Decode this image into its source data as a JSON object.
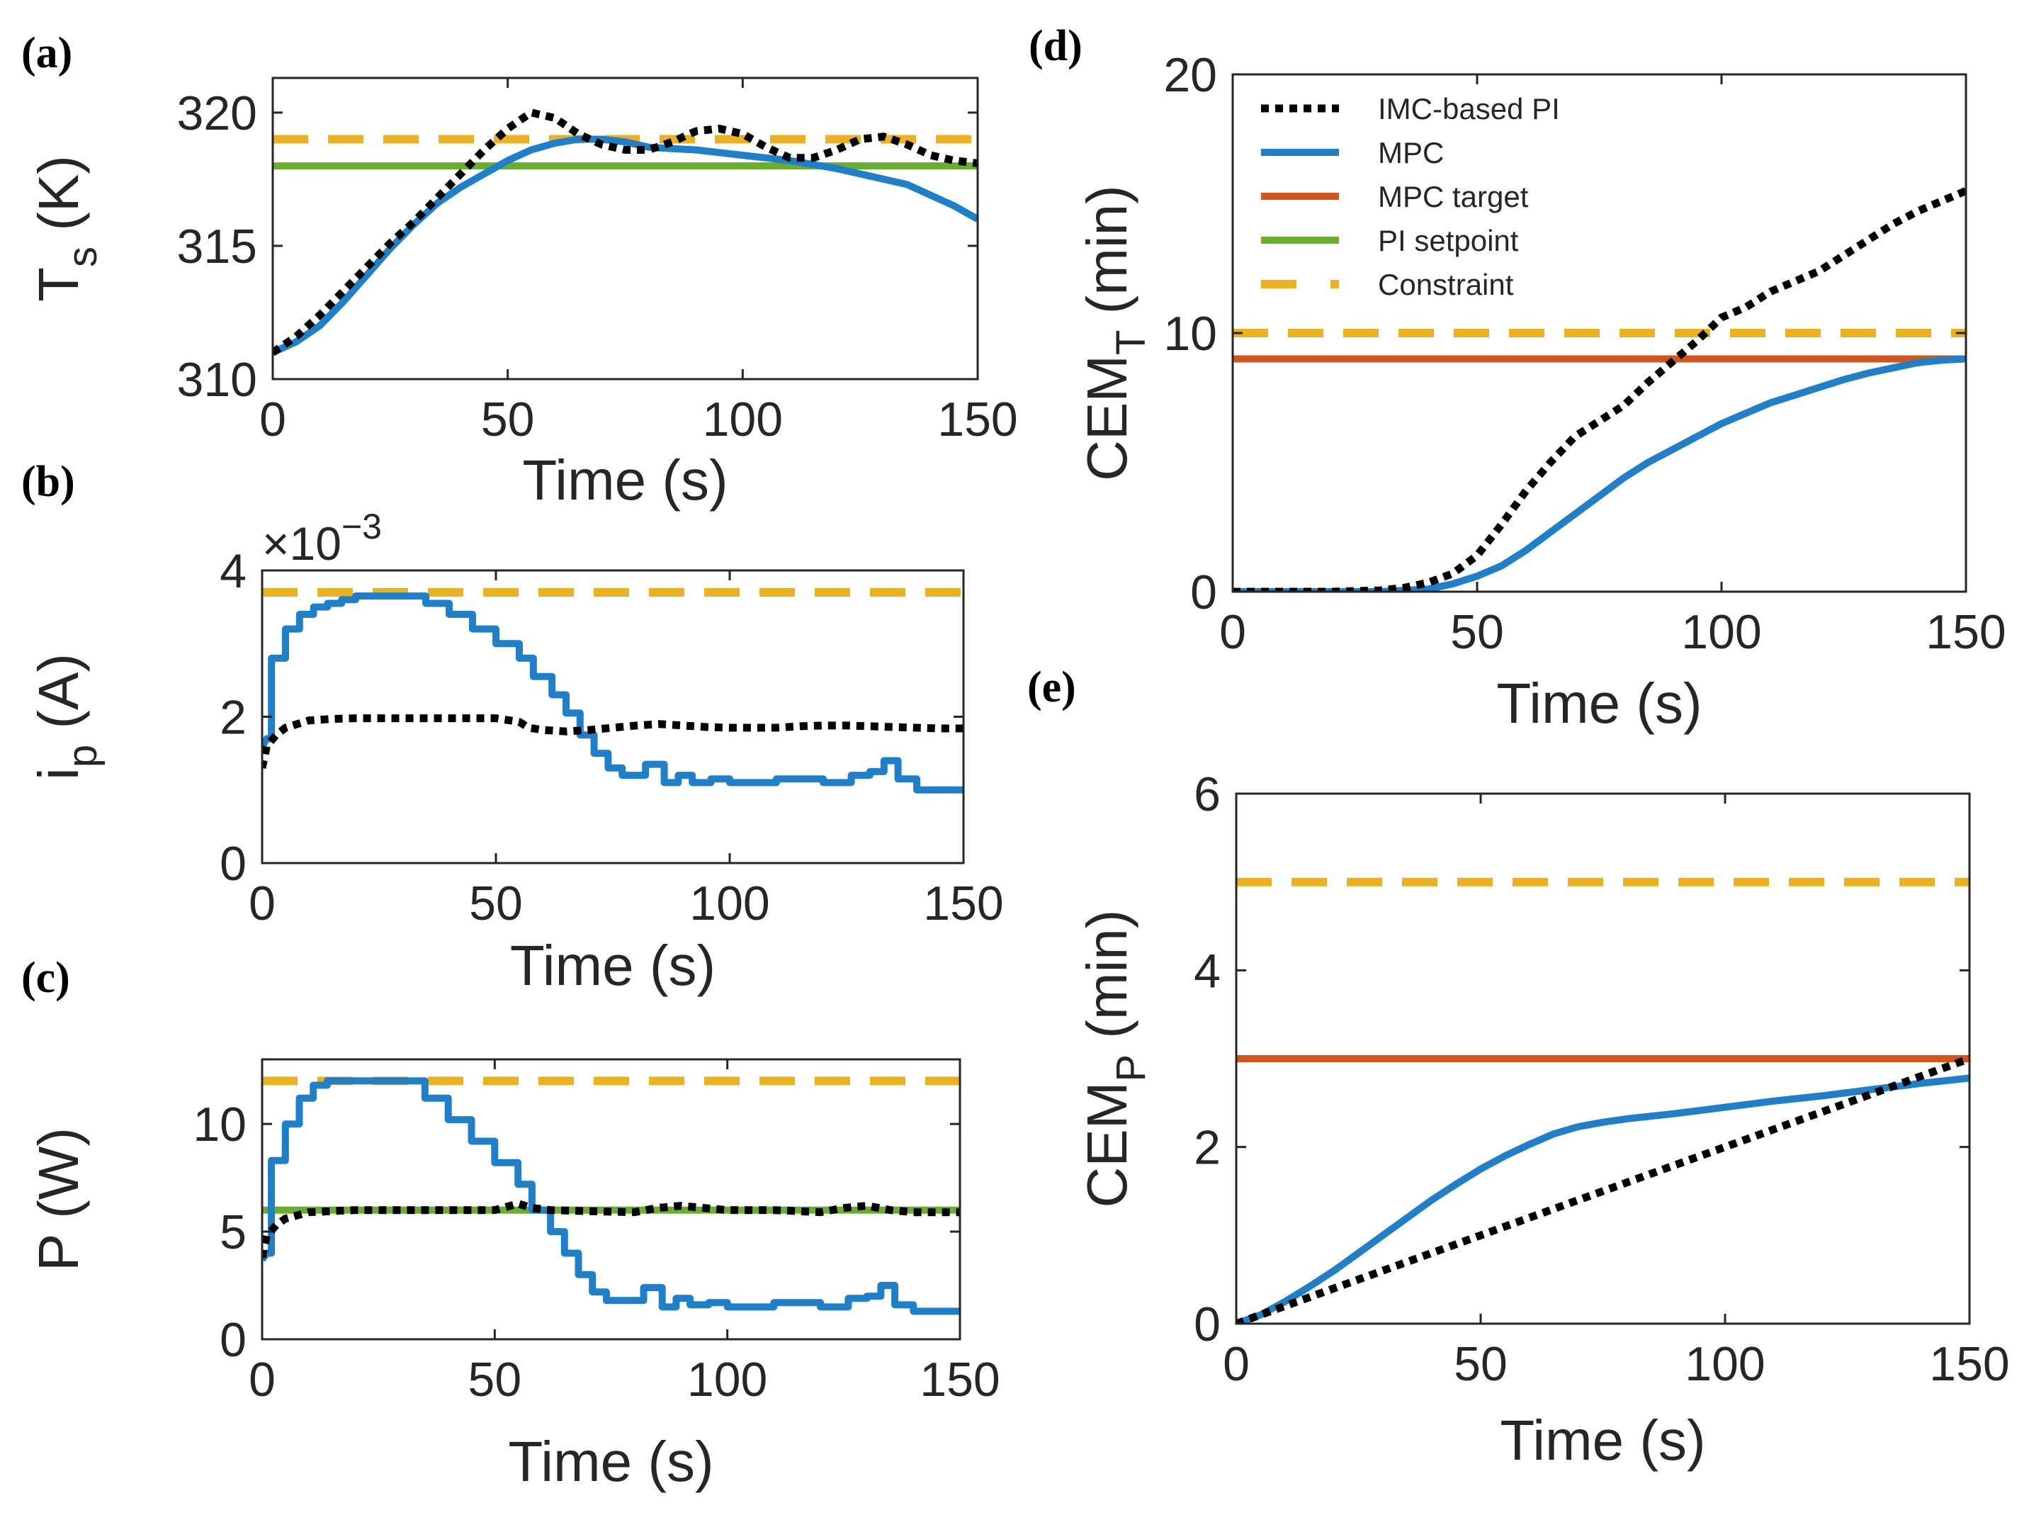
{
  "colors": {
    "imc": "#000000",
    "mpc": "#1f7fc8",
    "mpc_target": "#d4541b",
    "pi_setpoint": "#6aae2e",
    "constraint": "#edb120"
  },
  "legend": {
    "imc": "IMC-based PI",
    "mpc": "MPC",
    "mpc_target": "MPC target",
    "pi_setpoint": "PI setpoint",
    "constraint": "Constraint"
  },
  "chart_data": [
    {
      "id": "a",
      "panel_label": "(a)",
      "type": "line",
      "xlabel": "Time (s)",
      "ylabel": "T",
      "ylabel_sub": "s",
      "ylabel_suffix": " (K)",
      "xlim": [
        0,
        150
      ],
      "ylim": [
        310,
        321.3
      ],
      "xticks": [
        0,
        50,
        100,
        150
      ],
      "yticks": [
        310,
        315,
        320
      ],
      "series": [
        {
          "name": "IMC-based PI",
          "key": "imc",
          "style": "dotted",
          "x": [
            0,
            5,
            10,
            15,
            20,
            25,
            30,
            35,
            40,
            45,
            50,
            55,
            60,
            65,
            70,
            75,
            80,
            85,
            90,
            95,
            100,
            105,
            110,
            115,
            120,
            125,
            130,
            135,
            140,
            145,
            150
          ],
          "y": [
            311.0,
            311.6,
            312.4,
            313.3,
            314.2,
            315.1,
            315.9,
            316.8,
            317.7,
            318.6,
            319.4,
            320.0,
            319.8,
            319.2,
            318.8,
            318.6,
            318.6,
            318.9,
            319.3,
            319.4,
            319.2,
            318.7,
            318.3,
            318.3,
            318.6,
            319.0,
            319.1,
            318.8,
            318.4,
            318.2,
            318.1
          ]
        },
        {
          "name": "MPC",
          "key": "mpc",
          "style": "solid",
          "x": [
            0,
            5,
            10,
            15,
            20,
            25,
            30,
            35,
            40,
            45,
            50,
            55,
            60,
            65,
            70,
            75,
            80,
            85,
            90,
            95,
            100,
            105,
            110,
            115,
            120,
            125,
            130,
            135,
            140,
            145,
            150
          ],
          "y": [
            311.0,
            311.4,
            312.0,
            312.9,
            313.9,
            314.9,
            315.8,
            316.6,
            317.2,
            317.7,
            318.2,
            318.6,
            318.85,
            319.0,
            319.0,
            318.9,
            318.7,
            318.65,
            318.6,
            318.5,
            318.4,
            318.3,
            318.2,
            318.05,
            317.9,
            317.7,
            317.5,
            317.3,
            316.9,
            316.5,
            316.0
          ]
        },
        {
          "name": "PI setpoint",
          "key": "pi_setpoint",
          "style": "solid",
          "x": [
            0,
            150
          ],
          "y": [
            318,
            318
          ]
        },
        {
          "name": "Constraint",
          "key": "constraint",
          "style": "dashed",
          "x": [
            0,
            150
          ],
          "y": [
            319,
            319
          ]
        }
      ]
    },
    {
      "id": "b",
      "panel_label": "(b)",
      "type": "line",
      "xlabel": "Time (s)",
      "ylabel": "i",
      "ylabel_sub": "p",
      "ylabel_suffix": " (A)",
      "exponent": "×10",
      "exponent_power": "−3",
      "xlim": [
        0,
        150
      ],
      "ylim": [
        0,
        4.0
      ],
      "xticks": [
        0,
        50,
        100,
        150
      ],
      "yticks": [
        0,
        2,
        4
      ],
      "series": [
        {
          "name": "IMC-based PI",
          "key": "imc",
          "style": "dotted",
          "x": [
            0,
            1,
            3,
            5,
            10,
            15,
            20,
            30,
            40,
            50,
            55,
            57,
            60,
            65,
            70,
            75,
            80,
            85,
            90,
            95,
            100,
            105,
            110,
            115,
            120,
            125,
            130,
            135,
            140,
            145,
            150
          ],
          "y": [
            1.3,
            1.6,
            1.75,
            1.85,
            1.95,
            1.97,
            1.98,
            1.98,
            1.98,
            1.98,
            1.93,
            1.85,
            1.82,
            1.8,
            1.82,
            1.85,
            1.88,
            1.9,
            1.88,
            1.86,
            1.85,
            1.85,
            1.85,
            1.87,
            1.88,
            1.88,
            1.87,
            1.86,
            1.85,
            1.84,
            1.84
          ]
        },
        {
          "name": "MPC",
          "key": "mpc",
          "style": "solid",
          "x": [
            0,
            1,
            2,
            2,
            5,
            5,
            8,
            8,
            11,
            11,
            14,
            14,
            17,
            17,
            20,
            20,
            35,
            35,
            40,
            40,
            45,
            45,
            50,
            50,
            55,
            55,
            58,
            58,
            62,
            62,
            65,
            65,
            68,
            68,
            71,
            71,
            74,
            74,
            77,
            77,
            82,
            82,
            86,
            86,
            89,
            89,
            92,
            92,
            96,
            96,
            100,
            100,
            110,
            110,
            120,
            120,
            126,
            126,
            130,
            130,
            133,
            133,
            136,
            136,
            140,
            140,
            150
          ],
          "y": [
            1.6,
            1.7,
            1.7,
            2.8,
            2.8,
            3.2,
            3.2,
            3.4,
            3.4,
            3.5,
            3.5,
            3.55,
            3.55,
            3.6,
            3.6,
            3.65,
            3.65,
            3.55,
            3.55,
            3.4,
            3.4,
            3.2,
            3.2,
            3.0,
            3.0,
            2.8,
            2.8,
            2.55,
            2.55,
            2.3,
            2.3,
            2.05,
            2.05,
            1.75,
            1.75,
            1.5,
            1.5,
            1.3,
            1.3,
            1.2,
            1.2,
            1.35,
            1.35,
            1.1,
            1.1,
            1.2,
            1.2,
            1.1,
            1.1,
            1.15,
            1.15,
            1.1,
            1.1,
            1.15,
            1.15,
            1.1,
            1.1,
            1.2,
            1.2,
            1.25,
            1.25,
            1.4,
            1.4,
            1.15,
            1.15,
            1.0,
            1.0
          ]
        },
        {
          "name": "Constraint",
          "key": "constraint",
          "style": "dashed",
          "x": [
            0,
            150
          ],
          "y": [
            3.7,
            3.7
          ]
        }
      ]
    },
    {
      "id": "c",
      "panel_label": "(c)",
      "type": "line",
      "xlabel": "Time (s)",
      "ylabel": "P (W)",
      "xlim": [
        0,
        150
      ],
      "ylim": [
        0,
        13.0
      ],
      "xticks": [
        0,
        50,
        100,
        150
      ],
      "yticks": [
        0,
        5,
        10
      ],
      "series": [
        {
          "name": "IMC-based PI",
          "key": "imc",
          "style": "dotted",
          "x": [
            0,
            1,
            3,
            5,
            10,
            20,
            30,
            40,
            50,
            55,
            58,
            62,
            70,
            80,
            85,
            90,
            95,
            100,
            110,
            120,
            125,
            130,
            135,
            140,
            150
          ],
          "y": [
            3.8,
            4.8,
            5.3,
            5.6,
            5.9,
            6.0,
            6.0,
            6.0,
            6.0,
            6.3,
            6.1,
            6.0,
            5.95,
            5.9,
            6.1,
            6.2,
            6.1,
            6.0,
            6.0,
            5.9,
            6.1,
            6.2,
            6.0,
            5.9,
            5.9
          ]
        },
        {
          "name": "MPC",
          "key": "mpc",
          "style": "solid",
          "x": [
            0,
            1,
            2,
            2,
            5,
            5,
            8,
            8,
            11,
            11,
            14,
            14,
            35,
            35,
            40,
            40,
            45,
            45,
            50,
            50,
            55,
            55,
            58,
            58,
            62,
            62,
            65,
            65,
            68,
            68,
            71,
            71,
            74,
            74,
            77,
            77,
            82,
            82,
            86,
            86,
            89,
            89,
            92,
            92,
            96,
            96,
            100,
            100,
            110,
            110,
            120,
            120,
            126,
            126,
            130,
            130,
            133,
            133,
            136,
            136,
            140,
            140,
            150
          ],
          "y": [
            3.7,
            4.0,
            4.0,
            8.3,
            8.3,
            10.0,
            10.0,
            11.2,
            11.2,
            11.8,
            11.8,
            12.0,
            12.0,
            11.2,
            11.2,
            10.2,
            10.2,
            9.2,
            9.2,
            8.2,
            8.2,
            7.2,
            7.2,
            6.0,
            6.0,
            5.0,
            5.0,
            4.0,
            4.0,
            3.0,
            3.0,
            2.2,
            2.2,
            1.8,
            1.8,
            1.8,
            1.8,
            2.4,
            2.4,
            1.5,
            1.5,
            1.9,
            1.9,
            1.6,
            1.6,
            1.7,
            1.7,
            1.5,
            1.5,
            1.7,
            1.7,
            1.5,
            1.5,
            1.9,
            1.9,
            2.0,
            2.0,
            2.5,
            2.5,
            1.6,
            1.6,
            1.3,
            1.3
          ]
        },
        {
          "name": "PI setpoint",
          "key": "pi_setpoint",
          "style": "solid",
          "x": [
            0,
            150
          ],
          "y": [
            6,
            6
          ]
        },
        {
          "name": "Constraint",
          "key": "constraint",
          "style": "dashed",
          "x": [
            0,
            150
          ],
          "y": [
            12,
            12
          ]
        }
      ]
    },
    {
      "id": "d",
      "panel_label": "(d)",
      "type": "line",
      "xlabel": "Time (s)",
      "ylabel": "CEM",
      "ylabel_sub": "T",
      "ylabel_suffix": " (min)",
      "xlim": [
        0,
        150
      ],
      "ylim": [
        0,
        20
      ],
      "xticks": [
        0,
        50,
        100,
        150
      ],
      "yticks": [
        0,
        10,
        20
      ],
      "legend_position": "top-left",
      "series": [
        {
          "name": "IMC-based PI",
          "key": "imc",
          "style": "dotted",
          "x": [
            0,
            20,
            30,
            35,
            40,
            45,
            50,
            55,
            60,
            65,
            70,
            75,
            80,
            85,
            90,
            95,
            100,
            105,
            110,
            115,
            120,
            125,
            130,
            135,
            140,
            145,
            150
          ],
          "y": [
            0,
            0,
            0.05,
            0.15,
            0.35,
            0.7,
            1.4,
            2.6,
            3.9,
            5.0,
            6.0,
            6.6,
            7.2,
            8.1,
            8.9,
            9.7,
            10.6,
            11.0,
            11.6,
            12.0,
            12.4,
            13.0,
            13.6,
            14.2,
            14.7,
            15.1,
            15.5
          ]
        },
        {
          "name": "MPC",
          "key": "mpc",
          "style": "solid",
          "x": [
            0,
            30,
            40,
            45,
            50,
            55,
            60,
            65,
            70,
            75,
            80,
            85,
            90,
            95,
            100,
            105,
            110,
            115,
            120,
            125,
            130,
            135,
            140,
            145,
            150
          ],
          "y": [
            0,
            0,
            0.1,
            0.3,
            0.6,
            1.0,
            1.6,
            2.3,
            3.0,
            3.7,
            4.4,
            5.0,
            5.5,
            6.0,
            6.5,
            6.9,
            7.3,
            7.6,
            7.9,
            8.2,
            8.45,
            8.65,
            8.85,
            8.95,
            9.0
          ]
        },
        {
          "name": "MPC target",
          "key": "mpc_target",
          "style": "solid",
          "x": [
            0,
            150
          ],
          "y": [
            9,
            9
          ]
        },
        {
          "name": "Constraint",
          "key": "constraint",
          "style": "dashed",
          "x": [
            0,
            150
          ],
          "y": [
            10,
            10
          ]
        }
      ]
    },
    {
      "id": "e",
      "panel_label": "(e)",
      "type": "line",
      "xlabel": "Time (s)",
      "ylabel": "CEM",
      "ylabel_sub": "P",
      "ylabel_suffix": " (min)",
      "xlim": [
        0,
        150
      ],
      "ylim": [
        0,
        6
      ],
      "xticks": [
        0,
        50,
        100,
        150
      ],
      "yticks": [
        0,
        2,
        4,
        6
      ],
      "series": [
        {
          "name": "IMC-based PI",
          "key": "imc",
          "style": "dotted",
          "x": [
            0,
            150
          ],
          "y": [
            0,
            3.0
          ]
        },
        {
          "name": "MPC",
          "key": "mpc",
          "style": "solid",
          "x": [
            0,
            5,
            10,
            15,
            20,
            25,
            30,
            35,
            40,
            45,
            50,
            55,
            60,
            65,
            70,
            75,
            80,
            90,
            100,
            110,
            120,
            130,
            140,
            150
          ],
          "y": [
            0,
            0.1,
            0.25,
            0.42,
            0.6,
            0.8,
            1.0,
            1.2,
            1.4,
            1.58,
            1.75,
            1.9,
            2.03,
            2.15,
            2.23,
            2.28,
            2.32,
            2.38,
            2.45,
            2.52,
            2.58,
            2.65,
            2.72,
            2.78
          ]
        },
        {
          "name": "MPC target",
          "key": "mpc_target",
          "style": "solid",
          "x": [
            0,
            150
          ],
          "y": [
            3,
            3
          ]
        },
        {
          "name": "Constraint",
          "key": "constraint",
          "style": "dashed",
          "x": [
            0,
            150
          ],
          "y": [
            5,
            5
          ]
        }
      ]
    }
  ]
}
